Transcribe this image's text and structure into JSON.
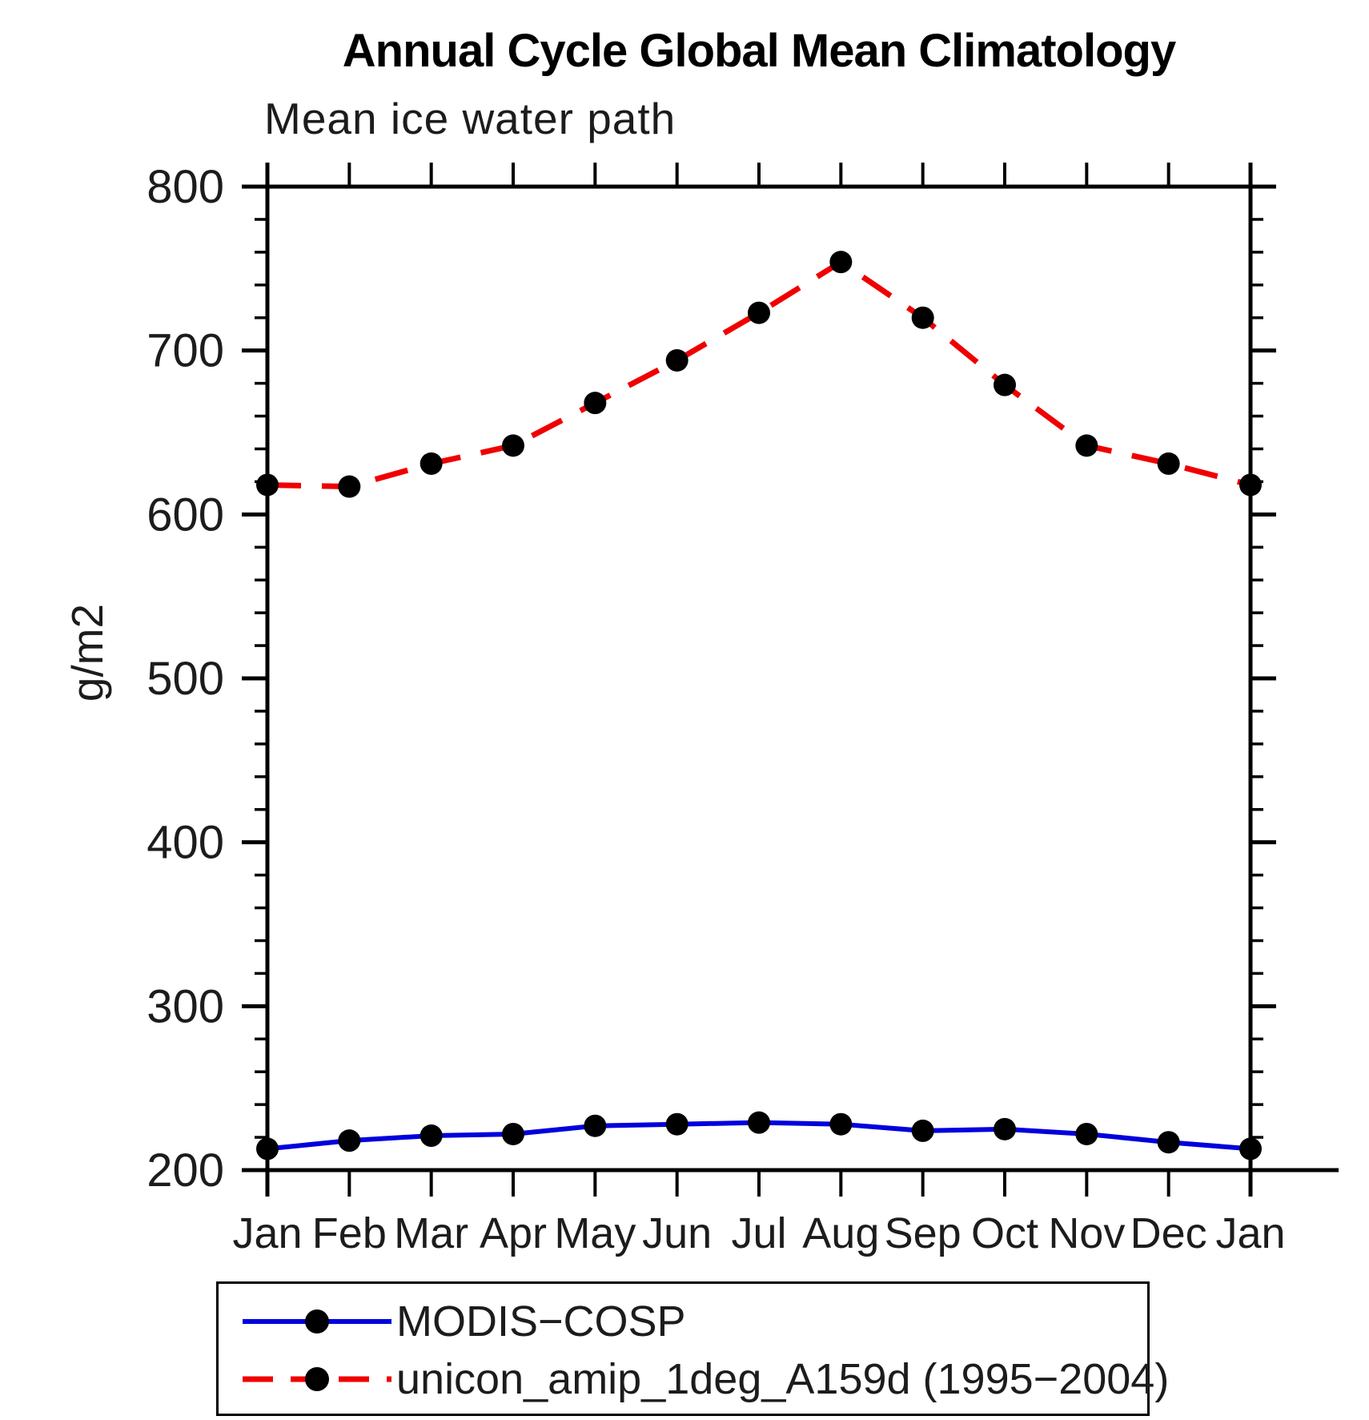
{
  "title": "Annual Cycle Global Mean Climatology",
  "subtitle": "Mean ice water path",
  "ylabel": "g/m2",
  "chart_data": {
    "type": "line",
    "x_categories": [
      "Jan",
      "Feb",
      "Mar",
      "Apr",
      "May",
      "Jun",
      "Jul",
      "Aug",
      "Sep",
      "Oct",
      "Nov",
      "Dec",
      "Jan"
    ],
    "ylim": [
      200,
      800
    ],
    "ytick_major": 100,
    "ytick_minor": 20,
    "ytick_major_labels": [
      "200",
      "300",
      "400",
      "500",
      "600",
      "700",
      "800"
    ],
    "grid": false,
    "legend_position": "bottom",
    "axis_color": "#000000",
    "series": [
      {
        "name": "MODIS−COSP",
        "color": "#0000dd",
        "style": "solid",
        "marker": "circle",
        "marker_color": "#000000",
        "values": [
          213,
          218,
          221,
          222,
          227,
          228,
          229,
          228,
          224,
          225,
          222,
          217,
          213
        ]
      },
      {
        "name": "unicon_amip_1deg_A159d (1995−2004)",
        "color": "#f00000",
        "style": "dashed",
        "marker": "circle",
        "marker_color": "#000000",
        "values": [
          618,
          617,
          631,
          642,
          668,
          694,
          723,
          754,
          720,
          679,
          642,
          631,
          618
        ]
      }
    ]
  }
}
